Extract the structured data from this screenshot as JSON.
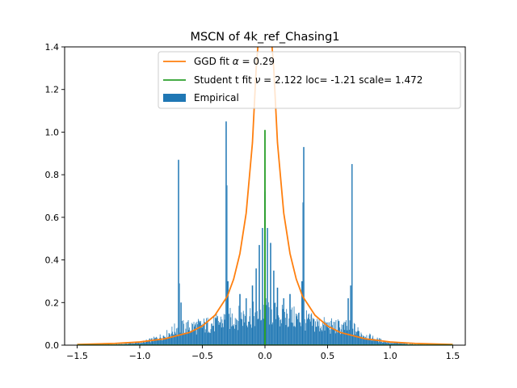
{
  "chart_data": {
    "type": "bar",
    "title": "MSCN of 4k_ref_Chasing1",
    "xlabel": "",
    "ylabel": "",
    "xlim": [
      -1.6,
      1.6
    ],
    "ylim": [
      0,
      1.4
    ],
    "xticks": [
      "−1.5",
      "−1.0",
      "−0.5",
      "0.0",
      "0.5",
      "1.0",
      "1.5"
    ],
    "xtick_values": [
      -1.5,
      -1.0,
      -0.5,
      0.0,
      0.5,
      1.0,
      1.5
    ],
    "yticks": [
      "0.0",
      "0.2",
      "0.4",
      "0.6",
      "0.8",
      "1.0",
      "1.2",
      "1.4"
    ],
    "ytick_values": [
      0.0,
      0.2,
      0.4,
      0.6,
      0.8,
      1.0,
      1.2,
      1.4
    ],
    "legend_position": "top-right",
    "grid": false,
    "series": [
      {
        "name": "GGD fit α = 0.29",
        "legend_label_prefix": "GGD fit ",
        "legend_label_symbol": "α",
        "legend_label_suffix": " = 0.29",
        "type": "line",
        "color": "#ff7f0e",
        "x": [
          -1.5,
          -1.2,
          -1.0,
          -0.8,
          -0.6,
          -0.5,
          -0.4,
          -0.3,
          -0.25,
          -0.2,
          -0.15,
          -0.1,
          -0.07,
          -0.05,
          0.05,
          0.07,
          0.1,
          0.15,
          0.2,
          0.25,
          0.3,
          0.4,
          0.5,
          0.6,
          0.8,
          1.0,
          1.2,
          1.5
        ],
        "y": [
          0.003,
          0.008,
          0.015,
          0.03,
          0.06,
          0.09,
          0.14,
          0.23,
          0.31,
          0.43,
          0.62,
          0.95,
          1.3,
          1.45,
          1.45,
          1.3,
          0.95,
          0.62,
          0.43,
          0.31,
          0.23,
          0.14,
          0.09,
          0.06,
          0.03,
          0.015,
          0.008,
          0.003
        ]
      },
      {
        "name": "Student t fit ν = 2.122 loc= -1.21 scale= 1.472",
        "legend_label_prefix": "Student t fit ",
        "legend_label_symbol": "ν",
        "legend_label_suffix": " = 2.122 loc= -1.21 scale= 1.472",
        "type": "line",
        "color": "#2ca02c",
        "x": [
          -1.5,
          -0.001,
          0.0,
          0.001,
          1.5
        ],
        "y": [
          0.0,
          0.0,
          1.01,
          0.0,
          0.0
        ]
      },
      {
        "name": "Empirical",
        "type": "histogram",
        "color": "#1f77b4",
        "bins": {
          "start": -1.5,
          "end": 1.5,
          "count": 600
        },
        "base": [
          [
            -1.5,
            0.0
          ],
          [
            -1.2,
            0.003
          ],
          [
            -1.0,
            0.012
          ],
          [
            -0.9,
            0.025
          ],
          [
            -0.8,
            0.045
          ],
          [
            -0.75,
            0.06
          ],
          [
            -0.7,
            0.08
          ],
          [
            -0.6,
            0.085
          ],
          [
            -0.5,
            0.09
          ],
          [
            -0.4,
            0.1
          ],
          [
            -0.3,
            0.12
          ],
          [
            -0.2,
            0.13
          ],
          [
            -0.1,
            0.14
          ],
          [
            -0.05,
            0.15
          ],
          [
            0.0,
            0.16
          ],
          [
            0.05,
            0.15
          ],
          [
            0.1,
            0.14
          ],
          [
            0.2,
            0.13
          ],
          [
            0.3,
            0.12
          ],
          [
            0.4,
            0.1
          ],
          [
            0.5,
            0.09
          ],
          [
            0.6,
            0.085
          ],
          [
            0.7,
            0.08
          ],
          [
            0.75,
            0.06
          ],
          [
            0.8,
            0.045
          ],
          [
            0.9,
            0.025
          ],
          [
            1.0,
            0.012
          ],
          [
            1.2,
            0.003
          ],
          [
            1.5,
            0.0
          ]
        ],
        "spikes": [
          {
            "x": -0.69,
            "y": 0.87
          },
          {
            "x": -0.685,
            "y": 0.29
          },
          {
            "x": -0.67,
            "y": 0.2
          },
          {
            "x": -0.31,
            "y": 1.05
          },
          {
            "x": -0.305,
            "y": 0.75
          },
          {
            "x": -0.295,
            "y": 0.3
          },
          {
            "x": -0.2,
            "y": 0.24
          },
          {
            "x": -0.15,
            "y": 0.22
          },
          {
            "x": -0.1,
            "y": 0.28
          },
          {
            "x": -0.07,
            "y": 0.36
          },
          {
            "x": -0.045,
            "y": 0.47
          },
          {
            "x": -0.02,
            "y": 0.55
          },
          {
            "x": 0.0,
            "y": 0.72
          },
          {
            "x": 0.02,
            "y": 0.55
          },
          {
            "x": 0.045,
            "y": 0.48
          },
          {
            "x": 0.07,
            "y": 0.35
          },
          {
            "x": 0.1,
            "y": 0.27
          },
          {
            "x": 0.15,
            "y": 0.22
          },
          {
            "x": 0.2,
            "y": 0.24
          },
          {
            "x": 0.295,
            "y": 0.3
          },
          {
            "x": 0.305,
            "y": 0.67
          },
          {
            "x": 0.31,
            "y": 0.93
          },
          {
            "x": 0.665,
            "y": 0.22
          },
          {
            "x": 0.685,
            "y": 0.28
          },
          {
            "x": 0.695,
            "y": 0.85
          }
        ]
      }
    ]
  }
}
